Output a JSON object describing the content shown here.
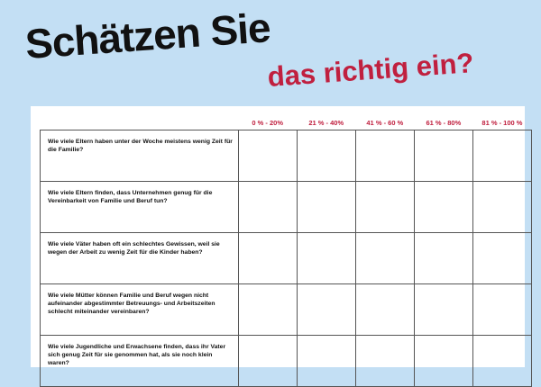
{
  "title": {
    "line1": "Schätzen Sie",
    "line2": "das richtig ein?"
  },
  "colors": {
    "background": "#c3dff4",
    "accent": "#c0203f",
    "text": "#111111"
  },
  "table": {
    "columns": [
      "0 % - 20%",
      "21 % - 40%",
      "41 % - 60 %",
      "61 % - 80%",
      "81 % - 100 %"
    ],
    "questions": [
      "Wie viele Eltern haben unter der Woche meistens wenig Zeit für die Familie?",
      "Wie viele Eltern finden, dass Unternehmen genug für die Vereinbarkeit von Familie und Beruf tun?",
      "Wie viele Väter haben oft ein schlechtes Gewissen, weil sie wegen der Arbeit zu wenig Zeit für die Kinder haben?",
      "Wie viele Mütter können Familie und Beruf wegen nicht aufeinander abgestimmter Betreuungs- und Arbeitszeiten schlecht miteinander vereinbaren?",
      "Wie viele Jugendliche und Erwachsene finden, dass ihr Vater sich genug Zeit für sie genommen hat, als sie noch klein waren?"
    ]
  }
}
